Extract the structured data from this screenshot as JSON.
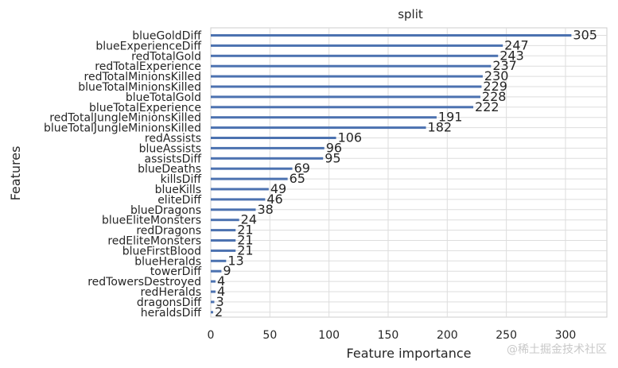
{
  "chart_data": {
    "type": "bar",
    "orientation": "horizontal",
    "title": "split",
    "xlabel": "Feature importance",
    "ylabel": "Features",
    "xlim": [
      0,
      335
    ],
    "xticks": [
      0,
      50,
      100,
      150,
      200,
      250,
      300
    ],
    "grid": true,
    "bar_color": "#4c72b0",
    "categories": [
      "blueGoldDiff",
      "blueExperienceDiff",
      "redTotalGold",
      "redTotalExperience",
      "redTotalMinionsKilled",
      "blueTotalMinionsKilled",
      "blueTotalGold",
      "blueTotalExperience",
      "redTotalJungleMinionsKilled",
      "blueTotalJungleMinionsKilled",
      "redAssists",
      "blueAssists",
      "assistsDiff",
      "blueDeaths",
      "killsDiff",
      "blueKills",
      "eliteDiff",
      "blueDragons",
      "blueEliteMonsters",
      "redDragons",
      "redEliteMonsters",
      "blueFirstBlood",
      "blueHeralds",
      "towerDiff",
      "redTowersDestroyed",
      "redHeralds",
      "dragonsDiff",
      "heraldsDiff"
    ],
    "values": [
      305,
      247,
      243,
      237,
      230,
      229,
      228,
      222,
      191,
      182,
      106,
      96,
      95,
      69,
      65,
      49,
      46,
      38,
      24,
      21,
      21,
      21,
      13,
      9,
      4,
      4,
      3,
      2
    ]
  },
  "watermark": "@稀土掘金技术社区"
}
